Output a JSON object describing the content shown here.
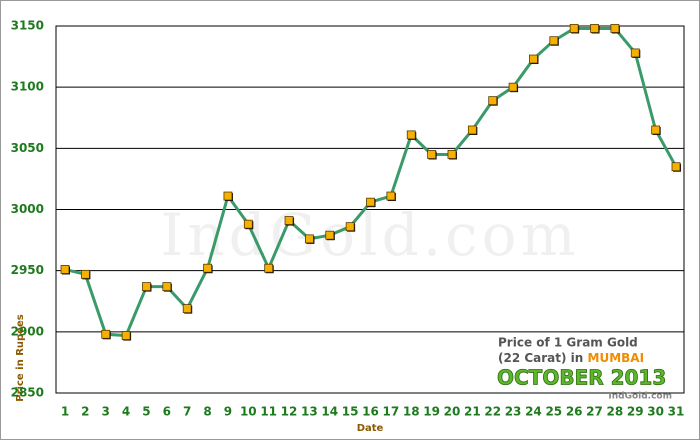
{
  "chart_data": {
    "type": "line",
    "categories": [
      "1",
      "2",
      "3",
      "4",
      "5",
      "6",
      "7",
      "8",
      "9",
      "10",
      "11",
      "12",
      "13",
      "14",
      "15",
      "16",
      "17",
      "18",
      "19",
      "20",
      "21",
      "22",
      "23",
      "24",
      "25",
      "26",
      "27",
      "28",
      "29",
      "30",
      "31"
    ],
    "series": [
      {
        "name": "Price of 1 Gram Gold",
        "color": "#3a9a6a",
        "values": [
          2951,
          2947,
          2898,
          2897,
          2937,
          2937,
          2919,
          2952,
          3011,
          2988,
          2952,
          2991,
          2976,
          2979,
          2986,
          3006,
          3011,
          3061,
          3045,
          3045,
          3065,
          3089,
          3100,
          3123,
          3138,
          3148,
          3148,
          3148,
          3128,
          3065,
          3035
        ]
      }
    ],
    "marker_color": "#f5b000",
    "ylim": [
      2850,
      3150
    ],
    "yticks": [
      2850,
      2900,
      2950,
      3000,
      3050,
      3100,
      3150
    ],
    "grid": true,
    "x_label": "Date",
    "y_label": "Price in Rupees",
    "watermark": "IndGold.com",
    "annotation": {
      "line1": "Price of 1 Gram Gold",
      "line2": "(22 Carat) in",
      "city": "MUMBAI",
      "month": "OCTOBER 2013",
      "source": "IndGold.com"
    }
  }
}
